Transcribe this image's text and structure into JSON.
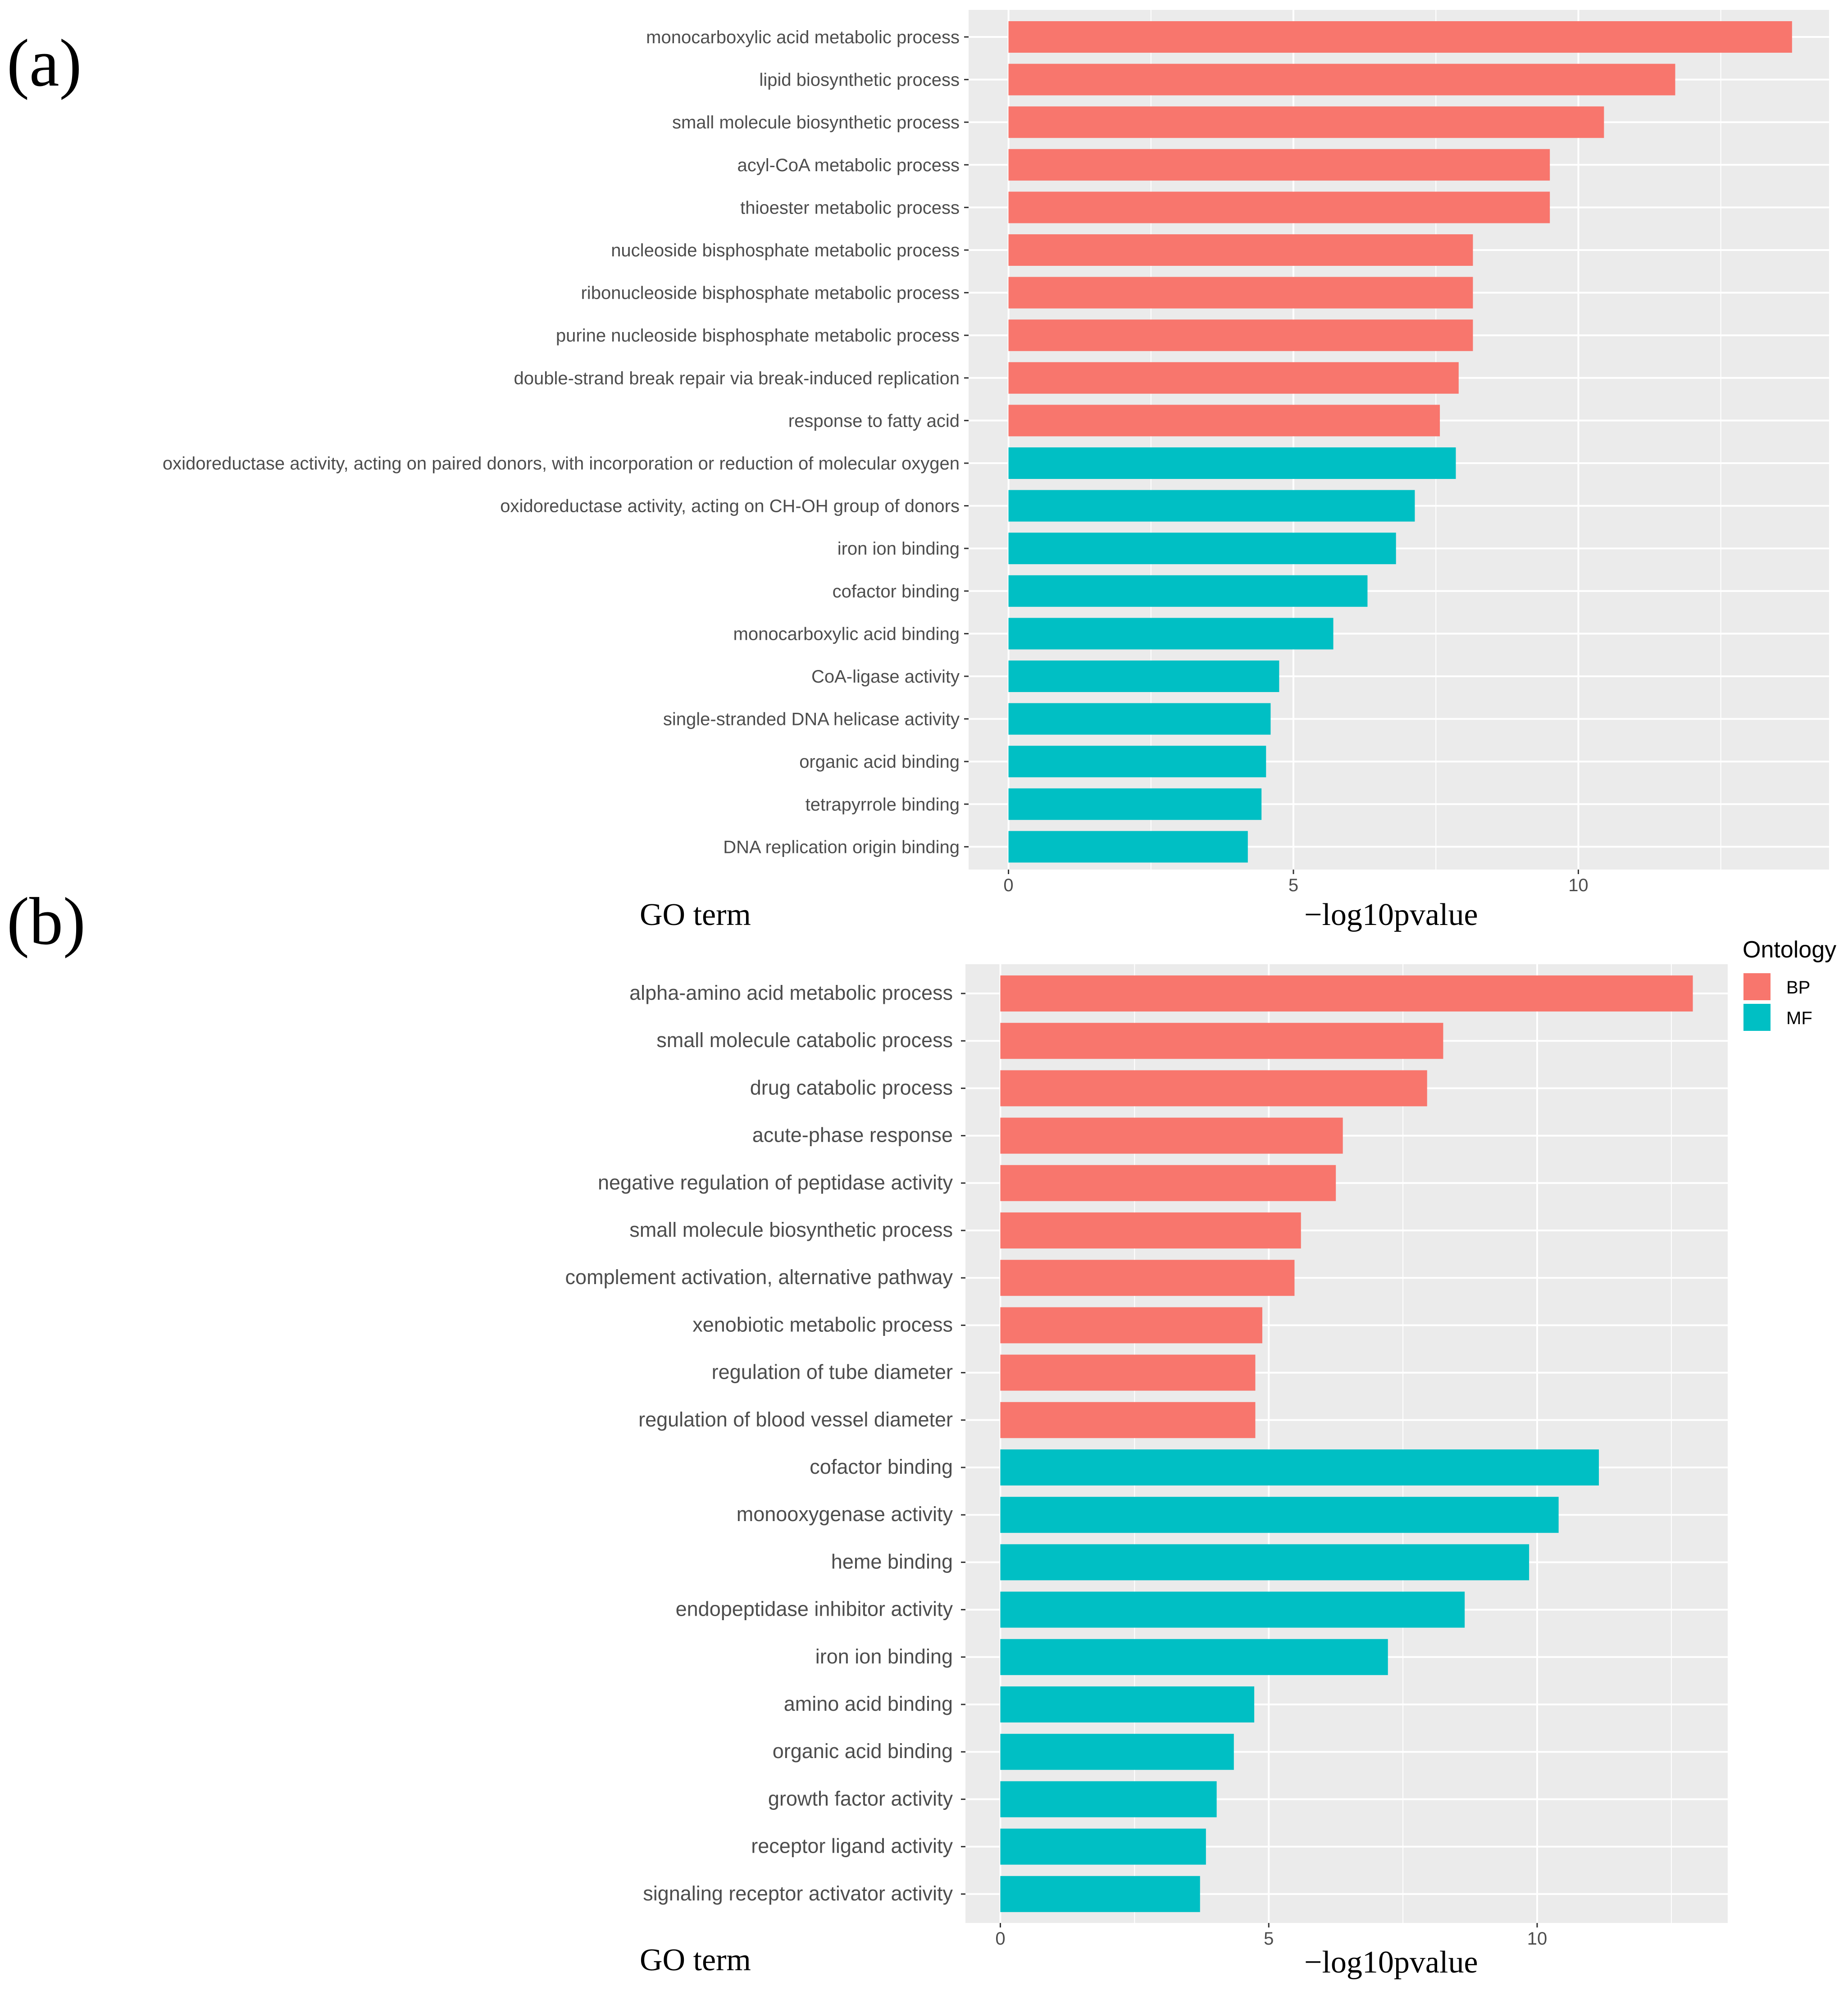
{
  "chart_data": [
    {
      "panel_label": "(a)",
      "type": "bar",
      "orientation": "horizontal",
      "xlabel": "−log10pvalue",
      "ylabel": "GO term",
      "xlim": [
        -0.7,
        14.4
      ],
      "x_ticks": [
        0,
        5,
        10
      ],
      "grid": true,
      "categories": [
        "monocarboxylic acid metabolic process",
        "lipid biosynthetic process",
        "small molecule biosynthetic process",
        "acyl-CoA metabolic process",
        "thioester metabolic process",
        "nucleoside bisphosphate metabolic process",
        "ribonucleoside bisphosphate metabolic process",
        "purine nucleoside bisphosphate metabolic process",
        "double-strand break repair via break-induced replication",
        "response to fatty acid",
        "oxidoreductase activity, acting on paired donors, with incorporation or reduction of molecular oxygen",
        "oxidoreductase activity, acting on CH-OH group of donors",
        "iron ion binding",
        "cofactor binding",
        "monocarboxylic acid binding",
        "CoA-ligase activity",
        "single-stranded DNA helicase activity",
        "organic acid binding",
        "tetrapyrrole binding",
        "DNA replication origin binding"
      ],
      "values": [
        13.75,
        11.7,
        10.45,
        9.5,
        9.5,
        8.15,
        8.15,
        8.15,
        7.9,
        7.57,
        7.85,
        7.13,
        6.8,
        6.3,
        5.7,
        4.75,
        4.6,
        4.52,
        4.44,
        4.2
      ],
      "ontology": [
        "BP",
        "BP",
        "BP",
        "BP",
        "BP",
        "BP",
        "BP",
        "BP",
        "BP",
        "BP",
        "MF",
        "MF",
        "MF",
        "MF",
        "MF",
        "MF",
        "MF",
        "MF",
        "MF",
        "MF"
      ]
    },
    {
      "panel_label": "(b)",
      "type": "bar",
      "orientation": "horizontal",
      "xlabel": "−log10pvalue",
      "ylabel": "GO term",
      "xlim": [
        -0.65,
        13.55
      ],
      "x_ticks": [
        0,
        5,
        10
      ],
      "grid": true,
      "categories": [
        "alpha-amino acid metabolic process",
        "small molecule catabolic process",
        "drug catabolic process",
        "acute-phase response",
        "negative regulation of peptidase activity",
        "small molecule biosynthetic process",
        "complement activation, alternative pathway",
        "xenobiotic metabolic process",
        "regulation of tube diameter",
        "regulation of blood vessel diameter",
        "cofactor binding",
        "monooxygenase activity",
        "heme binding",
        "endopeptidase inhibitor activity",
        "iron ion binding",
        "amino acid binding",
        "organic acid binding",
        "growth factor activity",
        "receptor ligand activity",
        "signaling receptor activator activity"
      ],
      "values": [
        12.9,
        8.25,
        7.95,
        6.38,
        6.25,
        5.6,
        5.48,
        4.88,
        4.75,
        4.75,
        11.15,
        10.4,
        9.85,
        8.65,
        7.22,
        4.73,
        4.35,
        4.03,
        3.83,
        3.72
      ],
      "ontology": [
        "BP",
        "BP",
        "BP",
        "BP",
        "BP",
        "BP",
        "BP",
        "BP",
        "BP",
        "BP",
        "MF",
        "MF",
        "MF",
        "MF",
        "MF",
        "MF",
        "MF",
        "MF",
        "MF",
        "MF"
      ]
    }
  ],
  "legend": {
    "title": "Ontology",
    "placement": "right",
    "entries": [
      {
        "label": "BP",
        "color": "#F8766D"
      },
      {
        "label": "MF",
        "color": "#00BFC4"
      }
    ]
  },
  "colors": {
    "panel_bg": "#EBEBEB",
    "grid_major": "#FFFFFF",
    "BP": "#F8766D",
    "MF": "#00BFC4",
    "tick_text": "#4D4D4D"
  }
}
